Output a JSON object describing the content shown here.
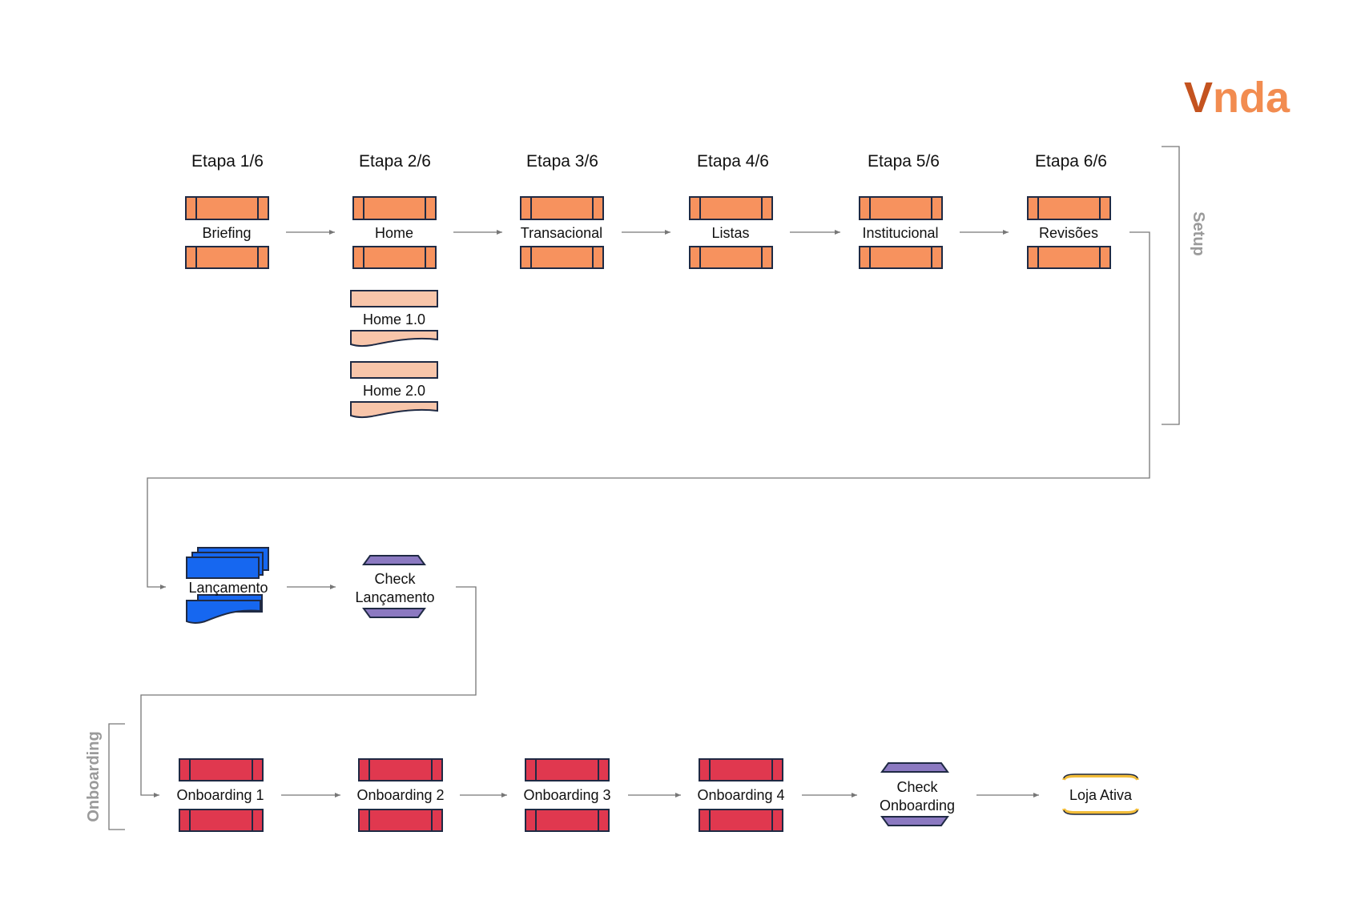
{
  "brand": {
    "logo_first": "V",
    "logo_rest": "nda",
    "color_dark": "#c4531f",
    "color_light": "#f28c50"
  },
  "colors": {
    "setup": "#f7925e",
    "home_variant": "#f8c5aa",
    "launch": "#1667f0",
    "check": "#8b79c1",
    "onboarding": "#e0384f",
    "active": "#f2bd3a",
    "outline": "#1f2a44"
  },
  "setup": {
    "group_label": "Setup",
    "stages": [
      {
        "heading": "Etapa 1/6",
        "label": "Briefing"
      },
      {
        "heading": "Etapa 2/6",
        "label": "Home"
      },
      {
        "heading": "Etapa 3/6",
        "label": "Transacional"
      },
      {
        "heading": "Etapa 4/6",
        "label": "Listas"
      },
      {
        "heading": "Etapa 5/6",
        "label": "Institucional"
      },
      {
        "heading": "Etapa 6/6",
        "label": "Revisões"
      }
    ],
    "home_variants": [
      "Home 1.0",
      "Home 2.0"
    ]
  },
  "launch": {
    "label": "Lançamento",
    "check": [
      "Check",
      "Lançamento"
    ]
  },
  "onboarding": {
    "group_label": "Onboarding",
    "steps": [
      "Onboarding 1",
      "Onboarding 2",
      "Onboarding 3",
      "Onboarding 4"
    ],
    "check": [
      "Check",
      "Onboarding"
    ],
    "final": "Loja Ativa"
  }
}
